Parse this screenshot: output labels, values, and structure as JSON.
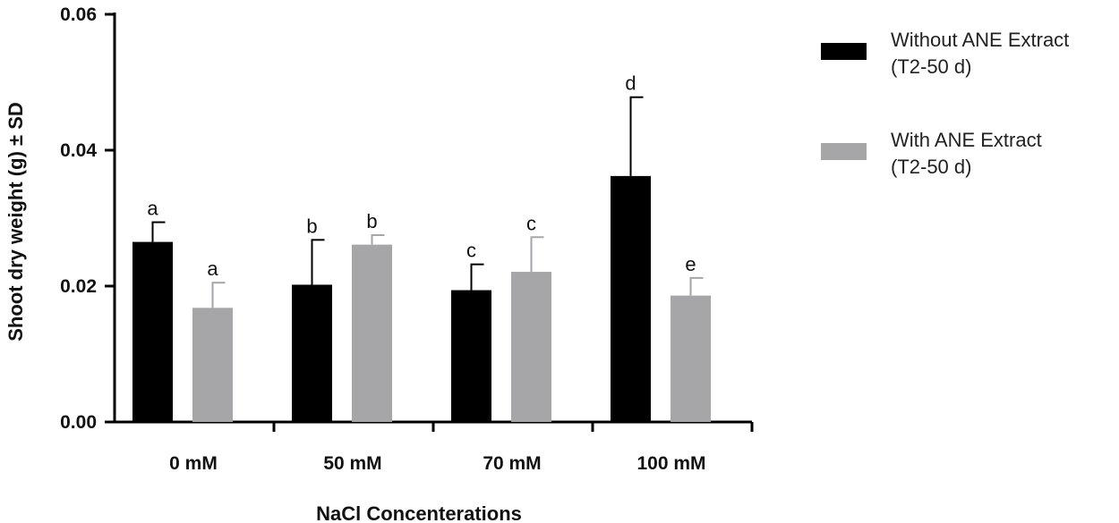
{
  "chart_data": {
    "type": "bar",
    "title": "",
    "xlabel": "NaCl Concenterations",
    "ylabel": "Shoot dry weight (g) ± SD",
    "ylim": [
      0,
      0.06
    ],
    "yticks": [
      "0.00",
      "0.02",
      "0.04",
      "0.06"
    ],
    "ytick_values": [
      0,
      0.02,
      0.04,
      0.06
    ],
    "categories": [
      "0 mM",
      "50 mM",
      "70 mM",
      "100 mM"
    ],
    "legend_position": "right",
    "series": [
      {
        "name": "Without ANE Extract",
        "name_line2": "(T2-50 d)",
        "color": "#000000",
        "values": [
          0.0265,
          0.0202,
          0.0194,
          0.0362
        ],
        "errors": [
          0.0029,
          0.0066,
          0.0038,
          0.0116
        ],
        "labels": [
          "a",
          "b",
          "c",
          "d"
        ]
      },
      {
        "name": "With ANE Extract",
        "name_line2": "(T2-50 d)",
        "color": "#a6a6a8",
        "values": [
          0.0168,
          0.0261,
          0.0221,
          0.0186
        ],
        "errors": [
          0.0037,
          0.0014,
          0.0051,
          0.0026
        ],
        "labels": [
          "a",
          "b",
          "c",
          "e"
        ]
      }
    ]
  }
}
